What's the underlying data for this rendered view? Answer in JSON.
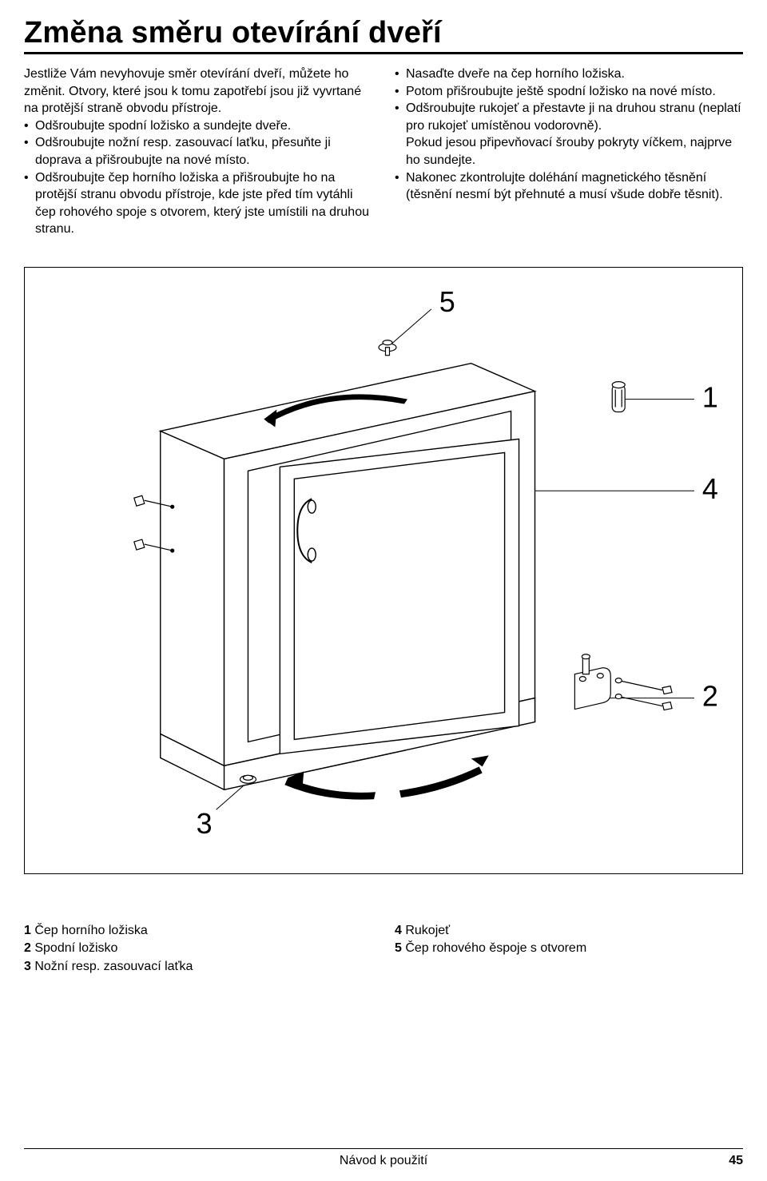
{
  "title": "Změna směru otevírání dveří",
  "left": {
    "intro1": "Jestliže Vám nevyhovuje směr otevírání dveří, můžete ho změnit. Otvory, které jsou k tomu zapotřebí jsou již vyvrtané na protější straně obvodu přístroje.",
    "b1": "Odšroubujte spodní ložisko a sundejte dveře.",
    "b2": "Odšroubujte nožní resp. zasouvací laťku, přesuňte ji doprava a přišroubujte na nové místo.",
    "b3": "Odšroubujte čep horního ložiska a přišroubujte ho na protější stranu obvodu přístroje, kde jste před tím vytáhli čep rohového spoje s otvorem, který jste umístili na druhou stranu."
  },
  "right": {
    "b1": "Nasaďte dveře na čep horního ložiska.",
    "b2": "Potom přišroubujte ještě spodní ložisko na nové místo.",
    "b3": "Odšroubujte rukojeť a přestavte ji na druhou stranu (neplatí pro rukojeť umístěnou vodorovně).",
    "b3_sub": "Pokud jesou připevňovací šrouby pokryty víčkem, najprve ho sundejte.",
    "b4": "Nakonec zkontrolujte doléhání magnetického těsnění (těsnění nesmí být přehnuté a musí všude dobře těsnit)."
  },
  "diagram": {
    "labels": {
      "n1": "1",
      "n2": "2",
      "n3": "3",
      "n4": "4",
      "n5": "5"
    },
    "label_fontsize": 36,
    "stroke": "#000000",
    "fill": "#ffffff",
    "stroke_width": 1.5,
    "arrow_fill": "#000000"
  },
  "legend": {
    "l1": "1 Čep horního ložiska",
    "l2": "2 Spodní ložisko",
    "l3": "3 Nožní resp. zasouvací laťka",
    "r1": "4 Rukojeť",
    "r2": "5 Čep rohového ěspoje s otvorem"
  },
  "footer": {
    "center": "Návod k použití",
    "page": "45"
  }
}
